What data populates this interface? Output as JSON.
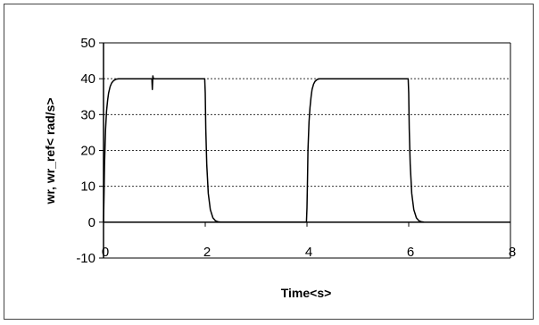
{
  "chart_data": {
    "type": "line",
    "title": "",
    "xlabel": "Time<s>",
    "ylabel": "wr, wr_ref< rad/s>",
    "xlim": [
      0,
      8
    ],
    "ylim": [
      -10,
      50
    ],
    "x_ticks": [
      0,
      2,
      4,
      6,
      8
    ],
    "y_ticks": [
      -10,
      0,
      10,
      20,
      30,
      40,
      50
    ],
    "grid": "horizontal-dotted",
    "legend": "none",
    "series": [
      {
        "color": "#000000",
        "x": [
          0,
          0.01,
          0.02,
          0.04,
          0.06,
          0.08,
          0.1,
          0.13,
          0.16,
          0.2,
          0.25,
          0.3,
          0.5,
          0.95,
          0.96,
          0.97,
          0.98,
          1.0,
          1.5,
          1.99,
          2.0,
          2.01,
          2.03,
          2.06,
          2.1,
          2.15,
          2.2,
          2.25,
          2.3,
          3.99,
          4.0,
          4.01,
          4.02,
          4.04,
          4.06,
          4.08,
          4.1,
          4.13,
          4.16,
          4.2,
          4.25,
          4.3,
          4.5,
          5.0,
          5.5,
          5.99,
          6.0,
          6.01,
          6.03,
          6.06,
          6.1,
          6.15,
          6.2,
          6.25,
          6.3
        ],
        "y": [
          0,
          8,
          16,
          26,
          31,
          34,
          36,
          37.8,
          38.8,
          39.5,
          39.9,
          40,
          40,
          40,
          37,
          40.8,
          40,
          40,
          40,
          40,
          36,
          26,
          16,
          8,
          3.5,
          1.2,
          0.4,
          0.1,
          0,
          0,
          4,
          12,
          20,
          28,
          32,
          35,
          37,
          38.5,
          39.3,
          39.8,
          40,
          40,
          40,
          40,
          40,
          40,
          36,
          26,
          16,
          8,
          3.5,
          1.2,
          0.4,
          0.1,
          0
        ]
      }
    ]
  }
}
